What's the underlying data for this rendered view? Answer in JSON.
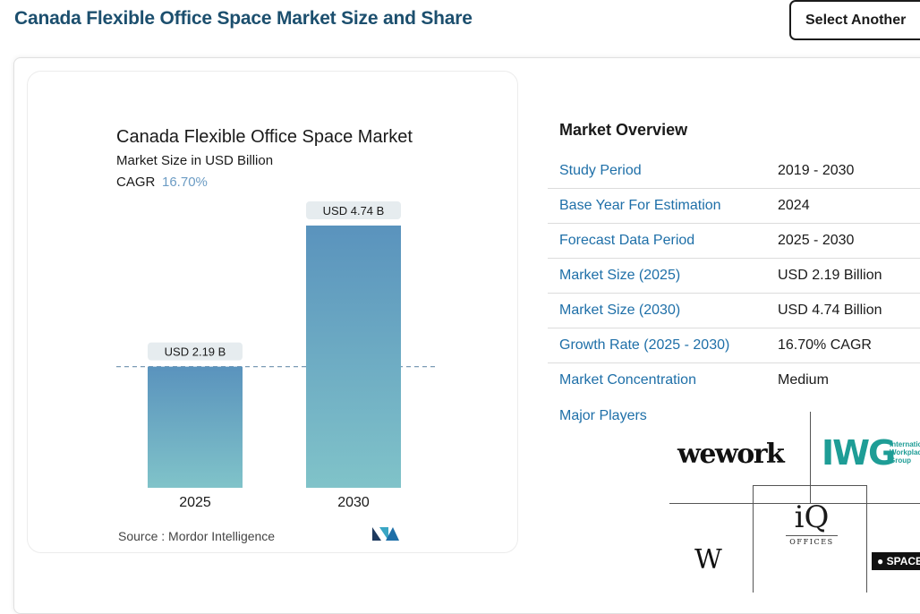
{
  "header": {
    "title": "Canada Flexible Office Space Market Size and Share",
    "select_label": "Select Another"
  },
  "chart_data": {
    "type": "bar",
    "title": "Canada Flexible Office Space Market",
    "subtitle": "Market Size in USD Billion",
    "cagr_label": "CAGR",
    "cagr_value": "16.70%",
    "categories": [
      "2025",
      "2030"
    ],
    "values": [
      2.19,
      4.74
    ],
    "data_labels": [
      "USD 2.19 B",
      "USD 4.74 B"
    ],
    "xlabel": "",
    "ylabel": "",
    "ylim": [
      0,
      4.74
    ],
    "grid": false,
    "reference_line_at": 2.19,
    "source": "Source :  Mordor Intelligence",
    "bar_colors": [
      "#5a93bd",
      "#80c3c9"
    ]
  },
  "overview": {
    "title": "Market Overview",
    "rows": [
      {
        "key": "Study Period",
        "value": "2019 - 2030"
      },
      {
        "key": "Base Year For Estimation",
        "value": "2024"
      },
      {
        "key": "Forecast Data Period",
        "value": "2025 - 2030"
      },
      {
        "key": "Market Size (2025)",
        "value": "USD 2.19 Billion"
      },
      {
        "key": "Market Size (2030)",
        "value": "USD 4.74 Billion"
      },
      {
        "key": "Growth Rate (2025 - 2030)",
        "value": "16.70% CAGR"
      },
      {
        "key": "Market Concentration",
        "value": "Medium"
      }
    ],
    "major_players_label": "Major Players",
    "players": {
      "wework": "wework",
      "iwg": "IWG",
      "iwg_sub": "International Workplace Group",
      "w": "W",
      "iq": "iQ",
      "iq_sub": "OFFICES",
      "spaces": "SPACES"
    }
  }
}
